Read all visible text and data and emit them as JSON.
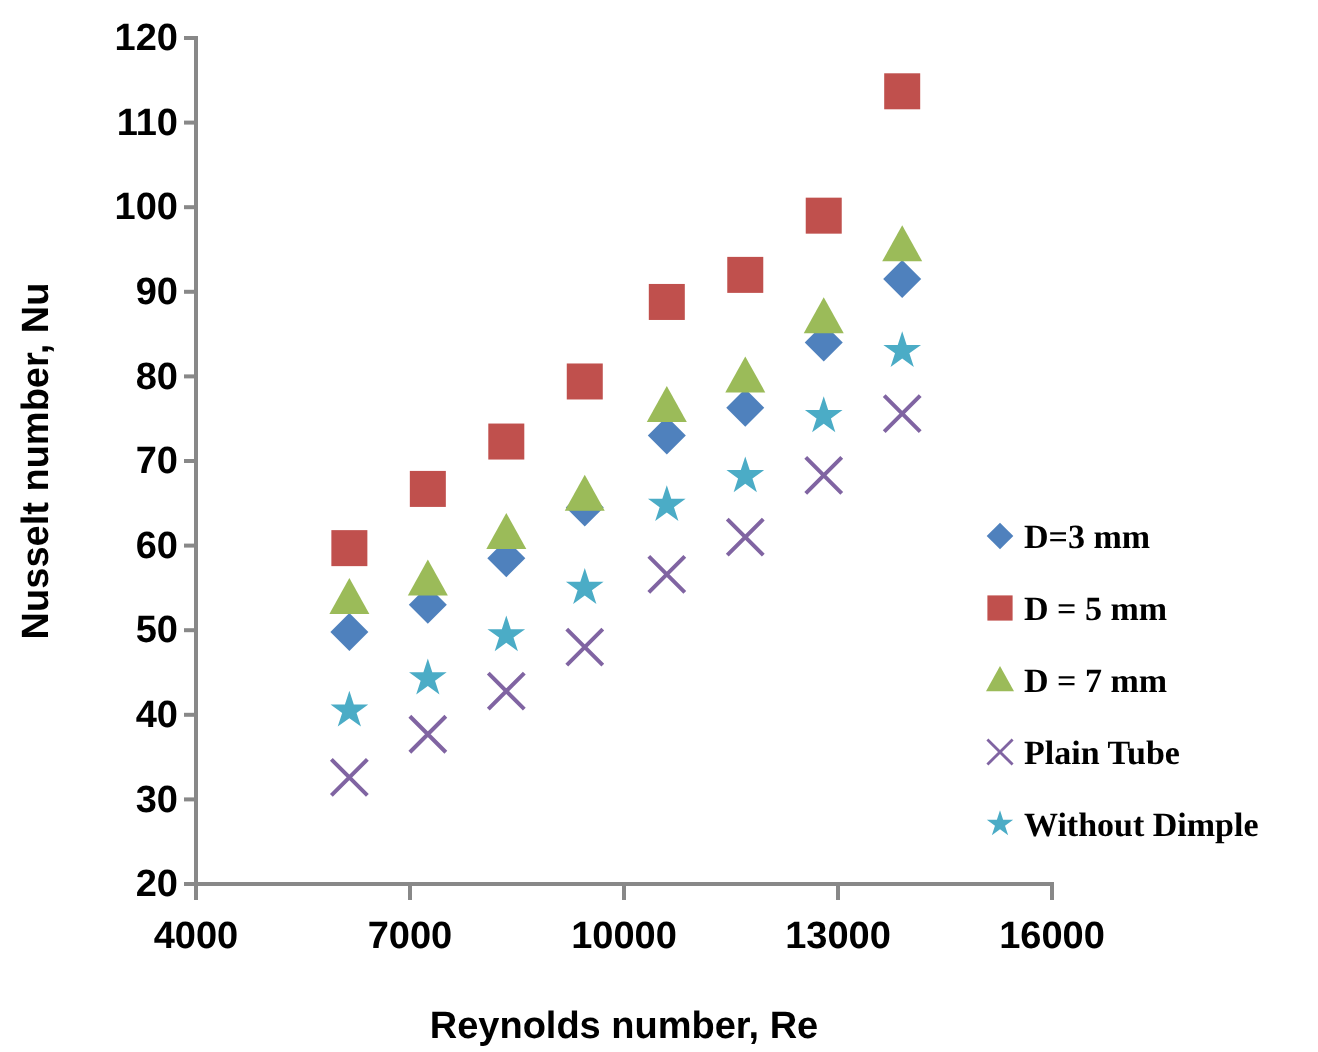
{
  "chart_data": {
    "type": "scatter",
    "xlabel": "Reynolds number, Re",
    "ylabel": "Nusselt number, Nu",
    "x": [
      6150,
      7250,
      8350,
      9450,
      10600,
      11700,
      12800,
      13900
    ],
    "xlim": [
      4000,
      16000
    ],
    "xticks": [
      4000,
      7000,
      10000,
      13000,
      16000
    ],
    "ylim": [
      20,
      120
    ],
    "yticks": [
      20,
      30,
      40,
      50,
      60,
      70,
      80,
      90,
      100,
      110,
      120
    ],
    "grid": false,
    "legend": "right",
    "series": [
      {
        "name": "D=3 mm",
        "color": "#4f81bd",
        "marker": "diamond",
        "values": [
          49.8,
          53,
          58.5,
          64.5,
          73,
          76.3,
          84,
          91.5
        ]
      },
      {
        "name": "D = 5 mm",
        "color": "#c0504d",
        "marker": "square",
        "values": [
          59.7,
          66.7,
          72.3,
          79.4,
          88.8,
          92,
          99,
          113.7
        ]
      },
      {
        "name": "D = 7 mm",
        "color": "#9bbb59",
        "marker": "triangle",
        "values": [
          53.8,
          56,
          61.5,
          66,
          76.5,
          80,
          87,
          95.5
        ]
      },
      {
        "name": "Plain Tube",
        "color": "#8064a2",
        "marker": "cross",
        "values": [
          32.6,
          37.7,
          42.8,
          48,
          56.6,
          61,
          68.3,
          75.6
        ]
      },
      {
        "name": "Without Dimple",
        "color": "#4bacc6",
        "marker": "star",
        "values": [
          40.5,
          44.3,
          49.4,
          55,
          64.8,
          68.2,
          75.3,
          83
        ]
      }
    ]
  }
}
